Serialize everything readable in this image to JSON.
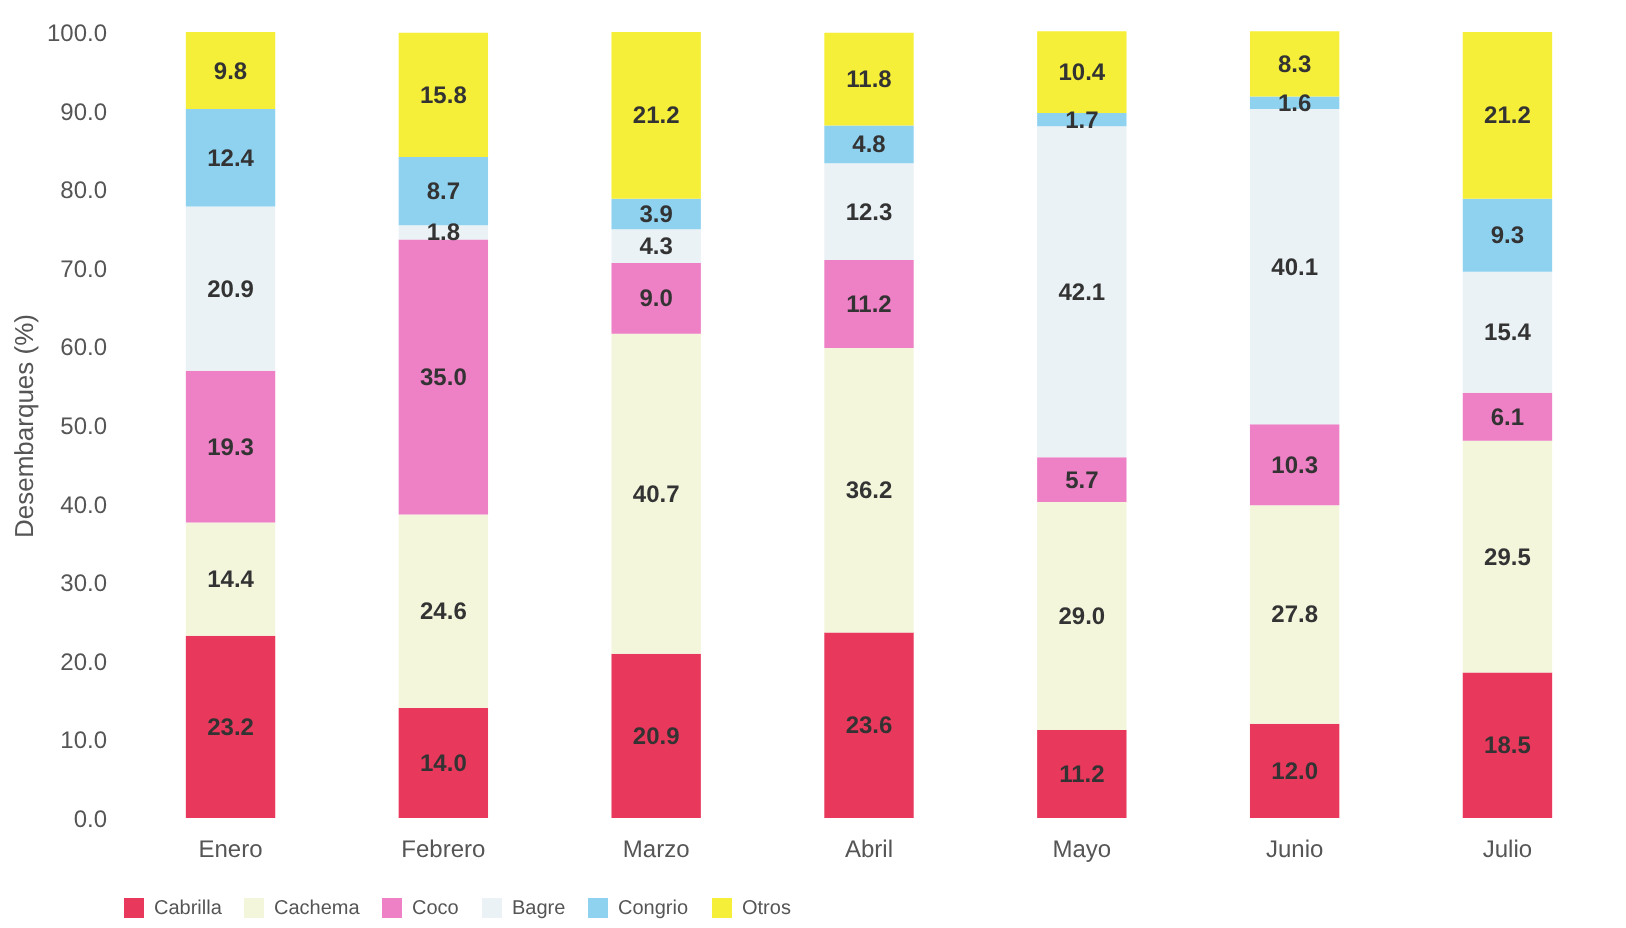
{
  "chart_data": {
    "type": "bar",
    "stacked": true,
    "ylabel": "Desembarques (%)",
    "categories": [
      "Enero",
      "Febrero",
      "Marzo",
      "Abril",
      "Mayo",
      "Junio",
      "Julio"
    ],
    "series": [
      {
        "name": "Cabrilla",
        "color": "#e8385c",
        "values": [
          23.2,
          14.0,
          20.9,
          23.6,
          11.2,
          12.0,
          18.5
        ],
        "value_labels": [
          "23.2",
          "14.0",
          "20.9",
          "23.6",
          "11.2",
          "12.0",
          "18.5"
        ]
      },
      {
        "name": "Cachema",
        "color": "#f4f6dc",
        "values": [
          14.4,
          24.6,
          40.7,
          36.2,
          29.0,
          27.8,
          29.5
        ],
        "value_labels": [
          "14.4",
          "24.6",
          "40.7",
          "36.2",
          "29.0",
          "27.8",
          "29.5"
        ]
      },
      {
        "name": "Coco",
        "color": "#ee80c6",
        "values": [
          19.3,
          35.0,
          9.0,
          11.2,
          5.7,
          10.3,
          6.1
        ],
        "value_labels": [
          "19.3",
          "35.0",
          "9.0",
          "11.2",
          "5.7",
          "10.3",
          "6.1"
        ]
      },
      {
        "name": "Bagre",
        "color": "#eaf2f5",
        "values": [
          20.9,
          1.8,
          4.3,
          12.3,
          42.1,
          40.1,
          15.4
        ],
        "value_labels": [
          "20.9",
          "1.8",
          "4.3",
          "12.3",
          "42.1",
          "40.1",
          "15.4"
        ]
      },
      {
        "name": "Congrio",
        "color": "#8fd2f0",
        "values": [
          12.4,
          8.7,
          3.9,
          4.8,
          1.7,
          1.6,
          9.3
        ],
        "value_labels": [
          "12.4",
          "8.7",
          "3.9",
          "4.8",
          "1.7",
          "1.6",
          "9.3"
        ]
      },
      {
        "name": "Otros",
        "color": "#f6ef3a",
        "values": [
          9.8,
          15.8,
          21.2,
          11.8,
          10.4,
          8.3,
          21.2
        ],
        "value_labels": [
          "9.8",
          "15.8",
          "21.2",
          "11.8",
          "10.4",
          "8.3",
          "21.2"
        ]
      }
    ],
    "ylim": [
      0,
      100
    ],
    "yticks": [
      {
        "value": 0,
        "label": "0.0"
      },
      {
        "value": 10,
        "label": "10.0"
      },
      {
        "value": 20,
        "label": "20.0"
      },
      {
        "value": 30,
        "label": "30.0"
      },
      {
        "value": 40,
        "label": "40.0"
      },
      {
        "value": 50,
        "label": "50.0"
      },
      {
        "value": 60,
        "label": "60.0"
      },
      {
        "value": 70,
        "label": "70.0"
      },
      {
        "value": 80,
        "label": "80.0"
      },
      {
        "value": 90,
        "label": "90.0"
      },
      {
        "value": 100,
        "label": "100.0"
      }
    ],
    "grid": false,
    "legend": "bottom",
    "data_labels": true
  }
}
